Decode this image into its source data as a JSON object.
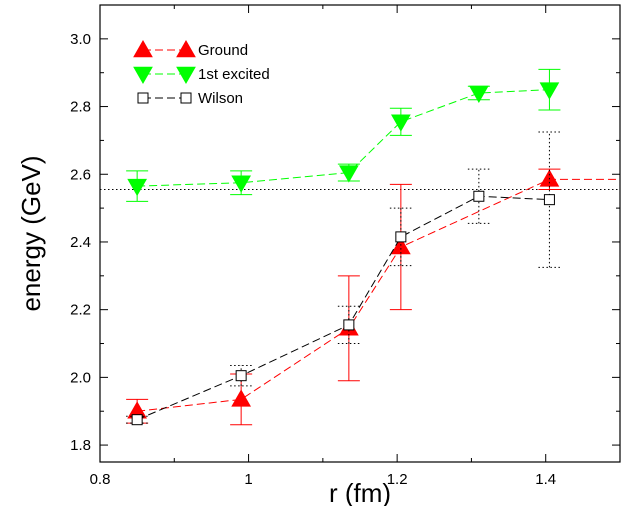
{
  "chart_data": {
    "type": "scatter",
    "xlabel": "r (fm)",
    "ylabel": "energy (GeV)",
    "xlim": [
      0.8,
      1.5
    ],
    "ylim": [
      1.75,
      3.1
    ],
    "x_ticks": [
      0.8,
      1.0,
      1.2,
      1.4
    ],
    "x_tick_labels": [
      "0.8",
      "1",
      "1.2",
      "1.4"
    ],
    "y_ticks": [
      1.8,
      2.0,
      2.2,
      2.4,
      2.6,
      2.8,
      3.0
    ],
    "y_tick_labels": [
      "1.8",
      "2.0",
      "2.2",
      "2.4",
      "2.6",
      "2.8",
      "3.0"
    ],
    "reference_line": {
      "y": 2.555,
      "style": "dotted"
    },
    "legend_position": "top-left",
    "series": [
      {
        "name": "Ground",
        "marker": "triangle-up",
        "color": "#ff0000",
        "x": [
          0.85,
          0.99,
          1.135,
          1.205,
          1.405
        ],
        "y": [
          1.9,
          1.935,
          2.145,
          2.385,
          2.585
        ],
        "err": [
          0.035,
          0.075,
          0.155,
          0.185,
          0.03
        ],
        "extension": {
          "x_end": 1.5,
          "y": 2.585
        }
      },
      {
        "name": "1st excited",
        "marker": "triangle-down",
        "color": "#00ff00",
        "x": [
          0.85,
          0.99,
          1.135,
          1.205,
          1.31,
          1.405
        ],
        "y": [
          2.565,
          2.575,
          2.605,
          2.755,
          2.84,
          2.85
        ],
        "err": [
          0.045,
          0.035,
          0.025,
          0.04,
          0.02,
          0.06
        ]
      },
      {
        "name": "Wilson",
        "marker": "square-open",
        "color": "#000000",
        "x": [
          0.85,
          0.99,
          1.135,
          1.205,
          1.31,
          1.405
        ],
        "y": [
          1.875,
          2.005,
          2.155,
          2.415,
          2.535,
          2.525
        ],
        "err": [
          0.01,
          0.03,
          0.055,
          0.085,
          0.08,
          0.2
        ]
      }
    ]
  }
}
